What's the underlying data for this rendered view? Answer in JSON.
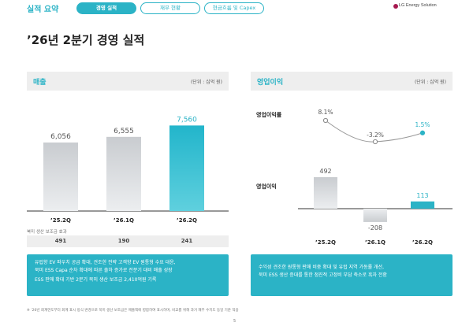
{
  "nav": {
    "title": "실적 요약",
    "tabs": [
      "경영 실적",
      "재무 현황",
      "현금흐름 및 Capex"
    ],
    "logo": "LG Energy Solution"
  },
  "page_title": "’26년 2분기 경영 실적",
  "sales_panel": {
    "label": "매출",
    "unit": "(단위 : 십억 원)"
  },
  "op_panel": {
    "label": "영업이익",
    "unit": "(단위 : 십억 원)",
    "margin_label": "영업이익률",
    "profit_label": "영업이익"
  },
  "tax_credit_label": "북미 생산 보조금 효과",
  "sales_box": [
    "유럽향 EV 파우치 공급 확대, 견조한 전략 고객향 EV 원통형 수요 대응,",
    "북미 ESS Capa 순차 확대에 따른 출하 증가로 전분기 대비 매출 성장",
    "ESS 판매 확대 기반 2분기 북미 생산 보조금 2,410억원 기록"
  ],
  "op_box": [
    "수익성 견조한 원통형 판매 비중 확대 및 유럽 지역 가동률 개선,",
    "북미 ESS 생산 증대를 통한 점진적 고정비 부담 축소로 흑자 전환"
  ],
  "footnote": "※ ’26년 회계연도부터 회계 표시 방식 변경으로 북미 생산 보조금은 매출액에 병합하여 표시하며, 비교를 위해 과거 재무 수치도 동일 기준 적용",
  "page_number": "5",
  "colors": {
    "accent": "#2bb3c6",
    "gray_bar_top": "#c9ccd0",
    "gray_bar_bottom": "#e9eaec"
  },
  "chart_data": [
    {
      "type": "bar",
      "title": "매출",
      "categories": [
        "’25.2Q",
        "’26.1Q",
        "’26.2Q"
      ],
      "values": [
        6056,
        6555,
        7560
      ],
      "value_labels": [
        "6,056",
        "6,555",
        "7,560"
      ],
      "ylim": [
        0,
        8000
      ],
      "highlight_last": true
    },
    {
      "type": "table",
      "title": "북미 생산 보조금 효과",
      "categories": [
        "’25.2Q",
        "’26.1Q",
        "’26.2Q"
      ],
      "values": [
        491,
        190,
        241
      ]
    },
    {
      "type": "line",
      "title": "영업이익률",
      "categories": [
        "’25.2Q",
        "’26.1Q",
        "’26.2Q"
      ],
      "values": [
        8.1,
        -3.2,
        1.5
      ],
      "value_labels": [
        "8.1%",
        "-3.2%",
        "1.5%"
      ]
    },
    {
      "type": "bar",
      "title": "영업이익",
      "categories": [
        "’25.2Q",
        "’26.1Q",
        "’26.2Q"
      ],
      "values": [
        492,
        -208,
        113
      ],
      "value_labels": [
        "492",
        "-208",
        "113"
      ],
      "highlight_last": true
    }
  ]
}
